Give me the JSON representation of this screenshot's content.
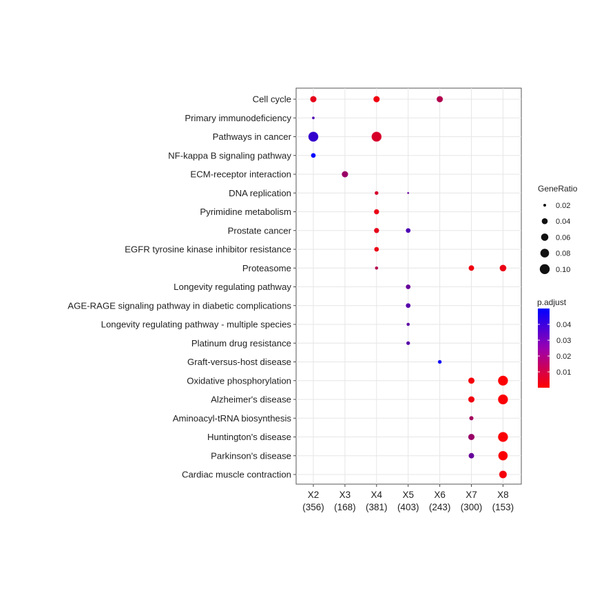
{
  "chart_data": {
    "type": "scatter",
    "title": "",
    "xlabel": "",
    "ylabel": "",
    "categories_x": [
      "X2\n(356)",
      "X3\n(168)",
      "X4\n(381)",
      "X5\n(403)",
      "X6\n(243)",
      "X7\n(300)",
      "X8\n(153)"
    ],
    "x_labels": [
      {
        "name": "X2",
        "count": "(356)"
      },
      {
        "name": "X3",
        "count": "(168)"
      },
      {
        "name": "X4",
        "count": "(381)"
      },
      {
        "name": "X5",
        "count": "(403)"
      },
      {
        "name": "X6",
        "count": "(243)"
      },
      {
        "name": "X7",
        "count": "(300)"
      },
      {
        "name": "X8",
        "count": "(153)"
      }
    ],
    "categories_y": [
      "Cell cycle",
      "Primary immunodeficiency",
      "Pathways in cancer",
      "NF-kappa B signaling pathway",
      "ECM-receptor interaction",
      "DNA replication",
      "Pyrimidine metabolism",
      "Prostate cancer",
      "EGFR tyrosine kinase inhibitor resistance",
      "Proteasome",
      "Longevity regulating pathway",
      "AGE-RAGE signaling pathway in diabetic complications",
      "Longevity regulating pathway - multiple species",
      "Platinum drug resistance",
      "Graft-versus-host disease",
      "Oxidative phosphorylation",
      "Alzheimer's disease",
      "Aminoacyl-tRNA biosynthesis",
      "Huntington's disease",
      "Parkinson's disease",
      "Cardiac muscle contraction"
    ],
    "points": [
      {
        "x": "X2",
        "y": "Cell cycle",
        "GeneRatio": 0.06,
        "p_adjust": 0.005
      },
      {
        "x": "X4",
        "y": "Cell cycle",
        "GeneRatio": 0.06,
        "p_adjust": 0.003
      },
      {
        "x": "X6",
        "y": "Cell cycle",
        "GeneRatio": 0.06,
        "p_adjust": 0.015
      },
      {
        "x": "X2",
        "y": "Primary immunodeficiency",
        "GeneRatio": 0.02,
        "p_adjust": 0.035
      },
      {
        "x": "X2",
        "y": "Pathways in cancer",
        "GeneRatio": 0.12,
        "p_adjust": 0.04
      },
      {
        "x": "X4",
        "y": "Pathways in cancer",
        "GeneRatio": 0.12,
        "p_adjust": 0.008
      },
      {
        "x": "X2",
        "y": "NF-kappa B signaling pathway",
        "GeneRatio": 0.04,
        "p_adjust": 0.05
      },
      {
        "x": "X3",
        "y": "ECM-receptor interaction",
        "GeneRatio": 0.06,
        "p_adjust": 0.02
      },
      {
        "x": "X4",
        "y": "DNA replication",
        "GeneRatio": 0.03,
        "p_adjust": 0.008
      },
      {
        "x": "X5",
        "y": "DNA replication",
        "GeneRatio": 0.01,
        "p_adjust": 0.03
      },
      {
        "x": "X4",
        "y": "Pyrimidine metabolism",
        "GeneRatio": 0.045,
        "p_adjust": 0.004
      },
      {
        "x": "X4",
        "y": "Prostate cancer",
        "GeneRatio": 0.045,
        "p_adjust": 0.005
      },
      {
        "x": "X5",
        "y": "Prostate cancer",
        "GeneRatio": 0.04,
        "p_adjust": 0.035
      },
      {
        "x": "X4",
        "y": "EGFR tyrosine kinase inhibitor resistance",
        "GeneRatio": 0.04,
        "p_adjust": 0.004
      },
      {
        "x": "X4",
        "y": "Proteasome",
        "GeneRatio": 0.025,
        "p_adjust": 0.015
      },
      {
        "x": "X7",
        "y": "Proteasome",
        "GeneRatio": 0.05,
        "p_adjust": 0.003
      },
      {
        "x": "X8",
        "y": "Proteasome",
        "GeneRatio": 0.065,
        "p_adjust": 0.004
      },
      {
        "x": "X5",
        "y": "Longevity regulating pathway",
        "GeneRatio": 0.04,
        "p_adjust": 0.03
      },
      {
        "x": "X5",
        "y": "AGE-RAGE signaling pathway in diabetic complications",
        "GeneRatio": 0.04,
        "p_adjust": 0.033
      },
      {
        "x": "X5",
        "y": "Longevity regulating pathway - multiple species",
        "GeneRatio": 0.025,
        "p_adjust": 0.032
      },
      {
        "x": "X5",
        "y": "Platinum drug resistance",
        "GeneRatio": 0.03,
        "p_adjust": 0.033
      },
      {
        "x": "X6",
        "y": "Graft-versus-host disease",
        "GeneRatio": 0.03,
        "p_adjust": 0.048
      },
      {
        "x": "X7",
        "y": "Oxidative phosphorylation",
        "GeneRatio": 0.06,
        "p_adjust": 0.002
      },
      {
        "x": "X8",
        "y": "Oxidative phosphorylation",
        "GeneRatio": 0.12,
        "p_adjust": 0.0005
      },
      {
        "x": "X7",
        "y": "Alzheimer's disease",
        "GeneRatio": 0.06,
        "p_adjust": 0.003
      },
      {
        "x": "X8",
        "y": "Alzheimer's disease",
        "GeneRatio": 0.12,
        "p_adjust": 0.001
      },
      {
        "x": "X7",
        "y": "Aminoacyl-tRNA biosynthesis",
        "GeneRatio": 0.035,
        "p_adjust": 0.018
      },
      {
        "x": "X7",
        "y": "Huntington's disease",
        "GeneRatio": 0.06,
        "p_adjust": 0.02
      },
      {
        "x": "X8",
        "y": "Huntington's disease",
        "GeneRatio": 0.12,
        "p_adjust": 0.001
      },
      {
        "x": "X7",
        "y": "Parkinson's disease",
        "GeneRatio": 0.05,
        "p_adjust": 0.03
      },
      {
        "x": "X8",
        "y": "Parkinson's disease",
        "GeneRatio": 0.11,
        "p_adjust": 0.001
      },
      {
        "x": "X8",
        "y": "Cardiac muscle contraction",
        "GeneRatio": 0.08,
        "p_adjust": 0.002
      }
    ],
    "size_legend": {
      "title": "GeneRatio",
      "values": [
        0.02,
        0.04,
        0.06,
        0.08,
        0.1
      ],
      "labels": [
        "0.02",
        "0.04",
        "0.06",
        "0.08",
        "0.10"
      ]
    },
    "color_legend": {
      "title": "p.adjust",
      "range": [
        0,
        0.05
      ],
      "ticks": [
        0.04,
        0.03,
        0.02,
        0.01
      ],
      "labels": [
        "0.04",
        "0.03",
        "0.02",
        "0.01"
      ],
      "low_color": "#ff0000",
      "high_color": "#0000ff"
    },
    "grid": true,
    "legend_placement": "right"
  }
}
